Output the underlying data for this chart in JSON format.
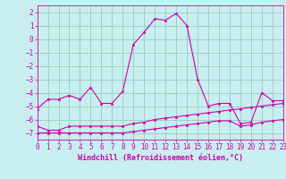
{
  "xlabel": "Windchill (Refroidissement éolien,°C)",
  "xlim": [
    0,
    23
  ],
  "ylim": [
    -7.5,
    2.5
  ],
  "yticks": [
    -7,
    -6,
    -5,
    -4,
    -3,
    -2,
    -1,
    0,
    1,
    2
  ],
  "xticks": [
    0,
    1,
    2,
    3,
    4,
    5,
    6,
    7,
    8,
    9,
    10,
    11,
    12,
    13,
    14,
    15,
    16,
    17,
    18,
    19,
    20,
    21,
    22,
    23
  ],
  "background_color": "#c8eef0",
  "grid_color": "#99ccbb",
  "line_color": "#cc00aa",
  "line1_x": [
    0,
    1,
    2,
    3,
    4,
    5,
    6,
    7,
    8,
    9,
    10,
    11,
    12,
    13,
    14,
    15,
    16,
    17,
    18,
    19,
    20,
    21,
    22,
    23
  ],
  "line1_y": [
    -5.2,
    -4.5,
    -4.5,
    -4.2,
    -4.5,
    -3.6,
    -4.8,
    -4.8,
    -3.9,
    -0.4,
    0.5,
    1.5,
    1.4,
    1.9,
    1.0,
    -3.0,
    -5.0,
    -4.8,
    -4.8,
    -6.3,
    -6.2,
    -4.0,
    -4.6,
    -4.6
  ],
  "line2_x": [
    0,
    1,
    2,
    3,
    4,
    5,
    6,
    7,
    8,
    9,
    10,
    11,
    12,
    13,
    14,
    15,
    16,
    17,
    18,
    19,
    20,
    21,
    22,
    23
  ],
  "line2_y": [
    -6.5,
    -6.8,
    -6.8,
    -6.5,
    -6.5,
    -6.5,
    -6.5,
    -6.5,
    -6.5,
    -6.3,
    -6.2,
    -6.0,
    -5.9,
    -5.8,
    -5.7,
    -5.6,
    -5.5,
    -5.4,
    -5.3,
    -5.2,
    -5.1,
    -5.0,
    -4.9,
    -4.8
  ],
  "line3_x": [
    0,
    1,
    2,
    3,
    4,
    5,
    6,
    7,
    8,
    9,
    10,
    11,
    12,
    13,
    14,
    15,
    16,
    17,
    18,
    19,
    20,
    21,
    22,
    23
  ],
  "line3_y": [
    -7.0,
    -7.0,
    -7.0,
    -7.0,
    -7.0,
    -7.0,
    -7.0,
    -7.0,
    -7.0,
    -6.9,
    -6.8,
    -6.7,
    -6.6,
    -6.5,
    -6.4,
    -6.3,
    -6.2,
    -6.1,
    -6.1,
    -6.5,
    -6.4,
    -6.2,
    -6.1,
    -6.0
  ],
  "tick_fontsize": 5.5,
  "xlabel_fontsize": 6.0,
  "marker_size": 2.5,
  "line_width": 0.8
}
